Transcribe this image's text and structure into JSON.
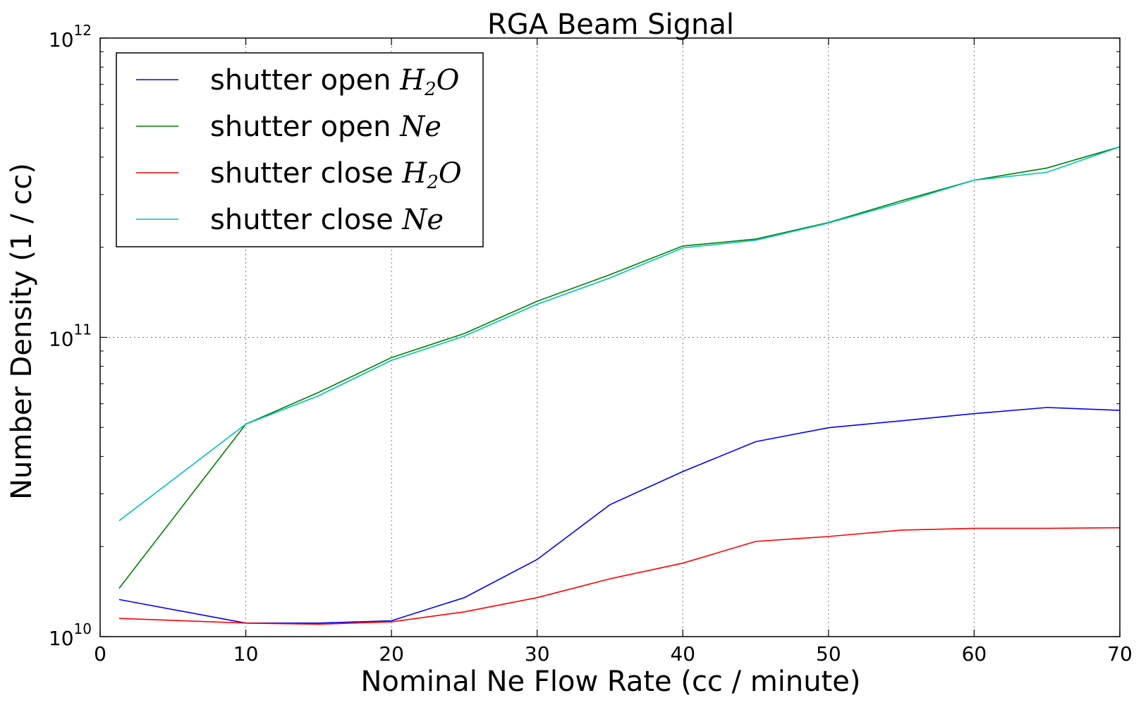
{
  "chart_data": {
    "type": "line",
    "title": "RGA Beam Signal",
    "xlabel": "Nominal Ne Flow Rate (cc / minute)",
    "ylabel": "Number Density (1 / cc)",
    "xlim": [
      0,
      70
    ],
    "ylim": [
      10000000000,
      1000000000000
    ],
    "yscale": "log",
    "grid": true,
    "legend_position": "top-left",
    "x_ticks": [
      "0",
      "10",
      "20",
      "30",
      "40",
      "50",
      "60",
      "70"
    ],
    "y_ticks": [
      {
        "base": "10",
        "exp": "10",
        "value": 10000000000
      },
      {
        "base": "10",
        "exp": "11",
        "value": 100000000000
      },
      {
        "base": "10",
        "exp": "12",
        "value": 1000000000000
      }
    ],
    "series": [
      {
        "name": "shutter open",
        "name_math": "H",
        "name_sub": "2",
        "name_math_tail": "O",
        "color": "#0000ff",
        "x": [
          1.3,
          10,
          15,
          20,
          25,
          30,
          35,
          40,
          45,
          50,
          55,
          60,
          65,
          70
        ],
        "y": [
          13300000000,
          11100000000,
          11100000000,
          11300000000,
          13500000000,
          18100000000,
          27600000000,
          35600000000,
          44800000000,
          49900000000,
          52600000000,
          55600000000,
          58300000000,
          57000000000
        ]
      },
      {
        "name": "shutter open",
        "name_math": "Ne",
        "name_sub": "",
        "name_math_tail": "",
        "color": "#008000",
        "x": [
          1.3,
          10,
          15,
          20,
          25,
          30,
          35,
          40,
          45,
          50,
          55,
          60,
          65,
          70
        ],
        "y": [
          14500000000,
          51300000000,
          65500000000,
          85600000000,
          103000000000,
          132000000000,
          162000000000,
          202000000000,
          213000000000,
          242000000000,
          286000000000,
          335000000000,
          368000000000,
          433000000000
        ]
      },
      {
        "name": "shutter close",
        "name_math": "H",
        "name_sub": "2",
        "name_math_tail": "O",
        "color": "#ff0000",
        "x": [
          1.3,
          10,
          15,
          20,
          25,
          30,
          35,
          40,
          45,
          50,
          55,
          60,
          65,
          70
        ],
        "y": [
          11500000000,
          11100000000,
          11000000000,
          11200000000,
          12100000000,
          13500000000,
          15600000000,
          17600000000,
          20800000000,
          21600000000,
          22700000000,
          23000000000,
          23000000000,
          23100000000
        ]
      },
      {
        "name": "shutter close",
        "name_math": "Ne",
        "name_sub": "",
        "name_math_tail": "",
        "color": "#00bfbf",
        "x": [
          1.3,
          10,
          15,
          20,
          25,
          30,
          35,
          40,
          45,
          50,
          55,
          60,
          65,
          70
        ],
        "y": [
          24400000000,
          51300000000,
          63800000000,
          83800000000,
          101000000000,
          129000000000,
          158000000000,
          199000000000,
          211000000000,
          241000000000,
          282000000000,
          335000000000,
          356000000000,
          433000000000
        ]
      }
    ]
  }
}
